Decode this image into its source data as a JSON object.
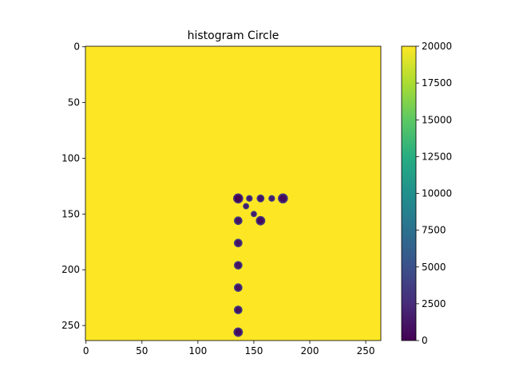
{
  "chart_data": {
    "type": "heatmap",
    "title": "histogram Circle",
    "xlabel": "",
    "ylabel": "",
    "xlim": [
      -0.5,
      263.5
    ],
    "ylim": [
      263.5,
      -0.5
    ],
    "x_ticks": [
      0,
      50,
      100,
      150,
      200,
      250
    ],
    "y_ticks": [
      0,
      50,
      100,
      150,
      200,
      250
    ],
    "background_value": 20000,
    "clim": [
      0,
      20000
    ],
    "colormap": "viridis",
    "colorbar_ticks": [
      0,
      2500,
      5000,
      7500,
      10000,
      12500,
      15000,
      17500,
      20000
    ],
    "blobs": [
      {
        "x": 136,
        "y": 136,
        "r": 4.5,
        "value": 0
      },
      {
        "x": 146,
        "y": 136,
        "r": 3,
        "value": 1500
      },
      {
        "x": 156,
        "y": 136,
        "r": 3.5,
        "value": 1000
      },
      {
        "x": 166,
        "y": 136,
        "r": 3,
        "value": 1500
      },
      {
        "x": 176,
        "y": 136,
        "r": 4.5,
        "value": 500
      },
      {
        "x": 143,
        "y": 143,
        "r": 2.8,
        "value": 1500
      },
      {
        "x": 150,
        "y": 150,
        "r": 2.8,
        "value": 1500
      },
      {
        "x": 136,
        "y": 156,
        "r": 3.8,
        "value": 1000
      },
      {
        "x": 156,
        "y": 156,
        "r": 4.2,
        "value": 500
      },
      {
        "x": 136,
        "y": 176,
        "r": 3.8,
        "value": 1000
      },
      {
        "x": 136,
        "y": 196,
        "r": 3.8,
        "value": 1000
      },
      {
        "x": 136,
        "y": 216,
        "r": 3.8,
        "value": 1000
      },
      {
        "x": 136,
        "y": 236,
        "r": 3.8,
        "value": 1000
      },
      {
        "x": 136,
        "y": 256,
        "r": 4.2,
        "value": 500
      }
    ]
  }
}
